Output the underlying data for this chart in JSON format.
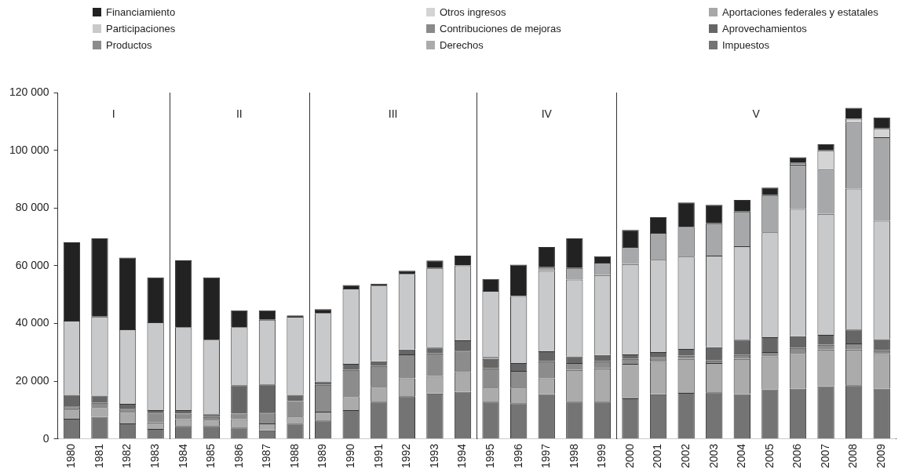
{
  "chart_data": {
    "type": "bar",
    "stacked": true,
    "legend": "top",
    "grid": false,
    "categories": [
      "1980",
      "1981",
      "1982",
      "1983",
      "1984",
      "1985",
      "1986",
      "1987",
      "1988",
      "1989",
      "1990",
      "1991",
      "1992",
      "1993",
      "1994",
      "1995",
      "1996",
      "1997",
      "1998",
      "1999",
      "2000",
      "2001",
      "2002",
      "2003",
      "2004",
      "2005",
      "2006",
      "2007",
      "2008",
      "2009"
    ],
    "ylim": [
      0,
      120000
    ],
    "yticks": [
      0,
      {
        "value": 20000,
        "label": "20 000"
      },
      {
        "value": 40000,
        "label": "40 000"
      },
      {
        "value": 60000,
        "label": "60 000"
      },
      {
        "value": 80000,
        "label": "80 000"
      },
      {
        "value": 100000,
        "label": "100 000"
      },
      {
        "value": 120000,
        "label": "120 000"
      }
    ],
    "bands": [
      {
        "axis": "x",
        "from": "1980",
        "to": "1983",
        "label": "I"
      },
      {
        "axis": "x",
        "from": "1984",
        "to": "1988",
        "label": "II"
      },
      {
        "axis": "x",
        "from": "1989",
        "to": "1994",
        "label": "III"
      },
      {
        "axis": "x",
        "from": "1995",
        "to": "1999",
        "label": "IV"
      },
      {
        "axis": "x",
        "from": "2000",
        "to": "2009",
        "label": "V"
      }
    ],
    "series": [
      {
        "name": "Impuestos",
        "color": "#747474",
        "values": [
          7000,
          7700,
          5400,
          3500,
          4500,
          4500,
          4000,
          3000,
          5300,
          6400,
          10000,
          12900,
          14800,
          15800,
          16400,
          12900,
          12400,
          15600,
          12900,
          12900,
          14100,
          15500,
          16000,
          16200,
          15600,
          17200,
          17500,
          18300,
          18600,
          17500
        ]
      },
      {
        "name": "Derechos",
        "color": "#ababab",
        "values": [
          3200,
          3300,
          4000,
          2200,
          2400,
          2200,
          2900,
          2400,
          2500,
          3100,
          4800,
          5200,
          6200,
          6000,
          6800,
          4900,
          5400,
          5400,
          11000,
          11600,
          11900,
          11200,
          11700,
          10100,
          12100,
          11400,
          12300,
          12700,
          12400,
          11900
        ]
      },
      {
        "name": "Productos",
        "color": "#8c8c8c",
        "values": [
          1100,
          1500,
          1100,
          3400,
          1900,
          900,
          1900,
          3700,
          5300,
          9300,
          9100,
          7200,
          8300,
          7800,
          7400,
          6700,
          5800,
          5900,
          2400,
          2400,
          1700,
          1700,
          1100,
          900,
          1400,
          1500,
          1700,
          1600,
          2100,
          1300
        ]
      },
      {
        "name": "Aprovechamientos",
        "color": "#666666",
        "values": [
          4000,
          2500,
          1700,
          900,
          1200,
          1000,
          9800,
          9800,
          2200,
          1100,
          2100,
          1600,
          1700,
          2100,
          3600,
          3200,
          2700,
          3500,
          2300,
          2200,
          1600,
          1700,
          2400,
          4600,
          5300,
          5200,
          4100,
          3500,
          4800,
          3900
        ]
      },
      {
        "name": "Contribuciones de mejoras",
        "color": "#8a8a8a",
        "values": [
          0,
          0,
          0,
          0,
          0,
          0,
          0,
          0,
          0,
          0,
          0,
          0,
          0,
          0,
          0,
          700,
          0,
          0,
          0,
          0,
          0,
          0,
          0,
          0,
          0,
          0,
          0,
          0,
          0,
          0
        ]
      },
      {
        "name": "Participaciones",
        "color": "#c8c9cb",
        "values": [
          25700,
          27400,
          25800,
          30400,
          28700,
          25800,
          20100,
          22400,
          27000,
          23700,
          26100,
          26200,
          26200,
          27500,
          25900,
          22900,
          23200,
          27800,
          26600,
          27700,
          31300,
          32000,
          32000,
          31700,
          32400,
          36300,
          44100,
          41900,
          48800,
          41000
        ]
      },
      {
        "name": "Aportaciones federales y estatales",
        "color": "#a6a8aa",
        "values": [
          0,
          0,
          0,
          0,
          0,
          0,
          0,
          0,
          0,
          0,
          0,
          0,
          0,
          0,
          0,
          0,
          0,
          1300,
          4000,
          4300,
          5900,
          9300,
          10300,
          11200,
          12000,
          12900,
          15300,
          15300,
          22900,
          28900
        ]
      },
      {
        "name": "Otros ingresos",
        "color": "#d4d4d4",
        "values": [
          0,
          0,
          0,
          0,
          0,
          0,
          0,
          0,
          0,
          0,
          0,
          0,
          0,
          0,
          0,
          0,
          0,
          0,
          0,
          0,
          0,
          0,
          0,
          0,
          0,
          0,
          600,
          6700,
          1300,
          3100
        ]
      },
      {
        "name": "Financiamiento",
        "color": "#222222",
        "values": [
          27100,
          27100,
          24800,
          15600,
          23200,
          21600,
          5900,
          3300,
          500,
          1400,
          1200,
          700,
          1100,
          2600,
          3400,
          4100,
          10900,
          7000,
          10300,
          2200,
          5900,
          5400,
          8400,
          6400,
          4000,
          2600,
          2000,
          2100,
          3800,
          3800
        ]
      }
    ]
  }
}
